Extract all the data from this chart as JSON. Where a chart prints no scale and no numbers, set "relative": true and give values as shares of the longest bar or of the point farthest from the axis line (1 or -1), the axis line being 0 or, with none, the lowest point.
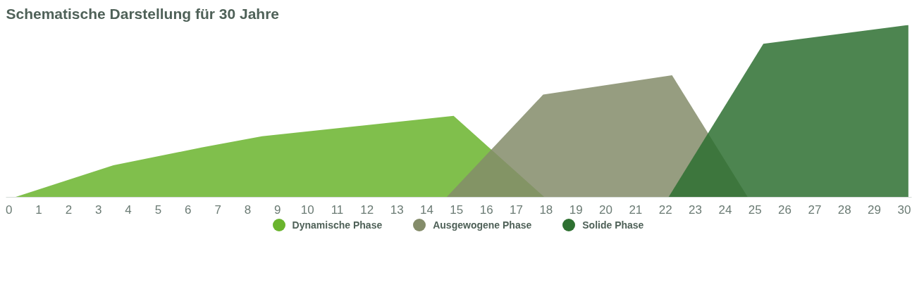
{
  "chart_data": {
    "type": "area",
    "title": "Schematische Darstellung für 30 Jahre",
    "relative": true,
    "xlim": [
      -0.1,
      30.25
    ],
    "xticks": [
      0,
      1,
      2,
      3,
      4,
      5,
      6,
      7,
      8,
      9,
      10,
      11,
      12,
      13,
      14,
      15,
      16,
      17,
      18,
      19,
      20,
      21,
      22,
      23,
      24,
      25,
      26,
      27,
      28,
      29,
      30
    ],
    "grid": false,
    "legend": "bottom",
    "series": [
      {
        "name": "Dynamische Phase",
        "color": "#6ab42d",
        "x": [
          0.19,
          3.5,
          6.48,
          8.48,
          14.9,
          17.95
        ],
        "values": [
          0,
          0.186,
          0.29,
          0.354,
          0.472,
          0
        ]
      },
      {
        "name": "Ausgewogene Phase",
        "color": "#848c6a",
        "x": [
          14.66,
          17.9,
          22.22,
          24.76
        ],
        "values": [
          0,
          0.596,
          0.708,
          0
        ]
      },
      {
        "name": "Solide Phase",
        "color": "#2e7031",
        "x": [
          22.1,
          25.28,
          30.14
        ],
        "values": [
          0,
          0.891,
          1.0
        ]
      }
    ]
  }
}
